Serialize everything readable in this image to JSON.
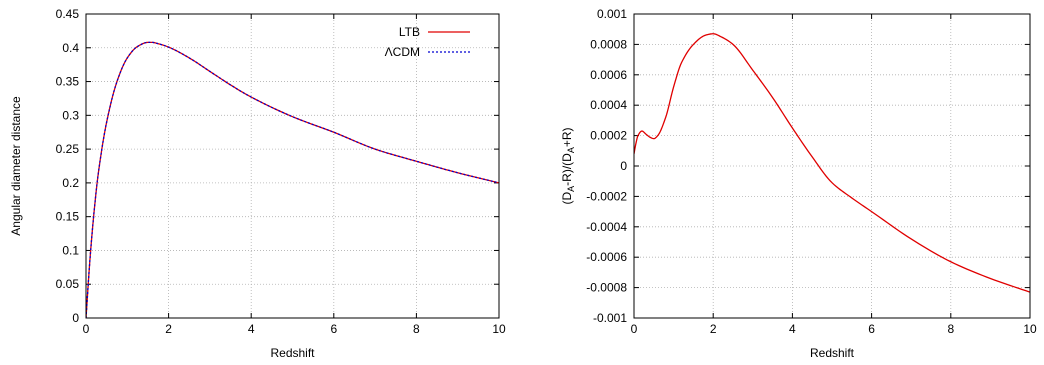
{
  "chart_data": [
    {
      "type": "line",
      "xlabel": "Redshift",
      "ylabel": "Angular diameter distance",
      "xlim": [
        0,
        10
      ],
      "ylim": [
        0,
        0.45
      ],
      "xticks": [
        "0",
        "2",
        "4",
        "6",
        "8",
        "10"
      ],
      "yticks": [
        "0",
        "0.05",
        "0.1",
        "0.15",
        "0.2",
        "0.25",
        "0.3",
        "0.35",
        "0.4",
        "0.45"
      ],
      "grid": true,
      "legend_position": "top-right",
      "series": [
        {
          "name": "LTB",
          "color": "#e00000",
          "style": "solid",
          "x": [
            0,
            0.1,
            0.2,
            0.3,
            0.5,
            0.75,
            1.0,
            1.25,
            1.5,
            1.6,
            1.75,
            2.0,
            2.5,
            3.0,
            3.5,
            4.0,
            5.0,
            6.0,
            7.0,
            8.0,
            9.0,
            10.0
          ],
          "y": [
            0,
            0.09,
            0.16,
            0.215,
            0.29,
            0.35,
            0.385,
            0.402,
            0.408,
            0.408,
            0.406,
            0.401,
            0.385,
            0.365,
            0.345,
            0.327,
            0.298,
            0.275,
            0.25,
            0.232,
            0.215,
            0.2
          ]
        },
        {
          "name": "ΛCDM",
          "color": "#0000d0",
          "style": "dotted",
          "x": [
            0,
            0.1,
            0.2,
            0.3,
            0.5,
            0.75,
            1.0,
            1.25,
            1.5,
            1.6,
            1.75,
            2.0,
            2.5,
            3.0,
            3.5,
            4.0,
            5.0,
            6.0,
            7.0,
            8.0,
            9.0,
            10.0
          ],
          "y": [
            0,
            0.09,
            0.16,
            0.215,
            0.29,
            0.35,
            0.385,
            0.402,
            0.408,
            0.408,
            0.406,
            0.401,
            0.385,
            0.365,
            0.345,
            0.327,
            0.298,
            0.275,
            0.25,
            0.232,
            0.215,
            0.2
          ]
        }
      ]
    },
    {
      "type": "line",
      "xlabel": "Redshift",
      "ylabel_parts": [
        "(D",
        "A",
        "-R)/(D",
        "A",
        "+R)"
      ],
      "xlim": [
        0,
        10
      ],
      "ylim": [
        -0.001,
        0.001
      ],
      "xticks": [
        "0",
        "2",
        "4",
        "6",
        "8",
        "10"
      ],
      "yticks": [
        "-0.001",
        "-0.0008",
        "-0.0006",
        "-0.0004",
        "-0.0002",
        "0",
        "0.0002",
        "0.0004",
        "0.0006",
        "0.0008",
        "0.001"
      ],
      "grid": true,
      "series": [
        {
          "color": "#e00000",
          "style": "solid",
          "x": [
            0,
            0.05,
            0.1,
            0.2,
            0.3,
            0.4,
            0.5,
            0.6,
            0.8,
            1.0,
            1.2,
            1.5,
            1.8,
            2.0,
            2.2,
            2.5,
            3.0,
            3.5,
            4.0,
            4.5,
            5.0,
            5.5,
            6.0,
            7.0,
            8.0,
            9.0,
            10.0
          ],
          "y": [
            8e-05,
            0.00015,
            0.0002,
            0.00023,
            0.00021,
            0.00019,
            0.00018,
            0.0002,
            0.00032,
            0.00052,
            0.00068,
            0.0008,
            0.00086,
            0.00087,
            0.00085,
            0.0008,
            0.00063,
            0.00045,
            0.00025,
            6e-05,
            -0.00011,
            -0.00021,
            -0.0003,
            -0.00048,
            -0.00063,
            -0.00074,
            -0.00083
          ]
        }
      ]
    }
  ]
}
